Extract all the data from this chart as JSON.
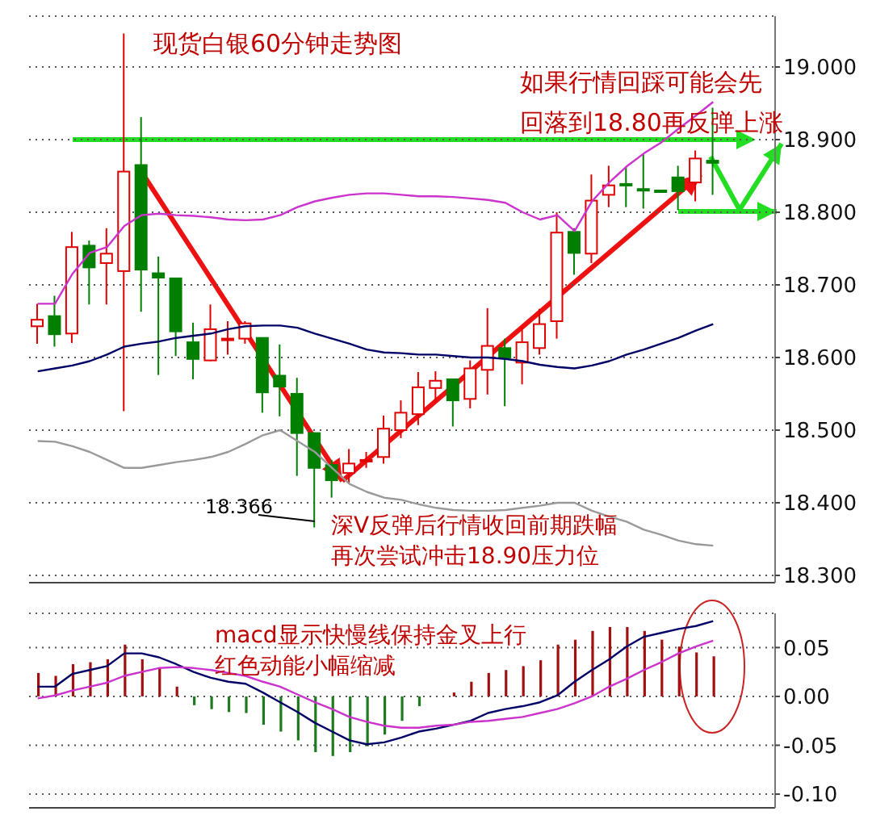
{
  "chart_data": [
    {
      "type": "candlestick",
      "title": "现货白银60分钟走势图",
      "categories": [
        null,
        null,
        null,
        null,
        null,
        null,
        null,
        null,
        null,
        null,
        null,
        null,
        null,
        null,
        null,
        null,
        null,
        null,
        null,
        null,
        null,
        null,
        null,
        null,
        null,
        null,
        null,
        null,
        null,
        null,
        null,
        null,
        null,
        null,
        null,
        null,
        null,
        null,
        null,
        null
      ],
      "ohlc": [
        [
          18.643,
          18.674,
          18.619,
          18.652
        ],
        [
          18.657,
          18.685,
          18.615,
          18.632
        ],
        [
          18.633,
          18.773,
          18.62,
          18.752
        ],
        [
          18.754,
          18.761,
          18.673,
          18.724
        ],
        [
          18.73,
          18.778,
          18.673,
          18.743
        ],
        [
          18.719,
          19.046,
          18.526,
          18.856
        ],
        [
          18.865,
          18.931,
          18.663,
          18.721
        ],
        [
          18.716,
          18.739,
          18.576,
          18.71
        ],
        [
          18.709,
          18.709,
          18.602,
          18.636
        ],
        [
          18.621,
          18.648,
          18.57,
          18.598
        ],
        [
          18.596,
          18.673,
          18.595,
          18.639
        ],
        [
          18.624,
          18.65,
          18.604,
          18.626
        ],
        [
          18.626,
          18.65,
          18.619,
          18.647
        ],
        [
          18.627,
          18.627,
          18.524,
          18.552
        ],
        [
          18.575,
          18.618,
          18.519,
          18.56
        ],
        [
          18.55,
          18.572,
          18.437,
          18.496
        ],
        [
          18.496,
          18.496,
          18.366,
          18.448
        ],
        [
          18.452,
          18.459,
          18.407,
          18.431
        ],
        [
          18.441,
          18.474,
          18.426,
          18.454
        ],
        [
          18.458,
          18.47,
          18.448,
          18.459
        ],
        [
          18.463,
          18.52,
          18.454,
          18.502
        ],
        [
          18.5,
          18.541,
          18.489,
          18.524
        ],
        [
          18.522,
          18.58,
          18.507,
          18.559
        ],
        [
          18.558,
          18.581,
          18.54,
          18.568
        ],
        [
          18.57,
          18.57,
          18.505,
          18.541
        ],
        [
          18.543,
          18.596,
          18.53,
          18.585
        ],
        [
          18.583,
          18.668,
          18.549,
          18.616
        ],
        [
          18.613,
          18.626,
          18.533,
          18.6
        ],
        [
          18.593,
          18.641,
          18.563,
          18.621
        ],
        [
          18.613,
          18.667,
          18.604,
          18.646
        ],
        [
          18.65,
          18.8,
          18.626,
          18.772
        ],
        [
          18.773,
          18.778,
          18.714,
          18.744
        ],
        [
          18.743,
          18.852,
          18.73,
          18.816
        ],
        [
          18.824,
          18.864,
          18.807,
          18.837
        ],
        [
          18.839,
          18.863,
          18.807,
          18.837
        ],
        [
          18.832,
          18.881,
          18.805,
          18.831
        ],
        [
          18.83,
          18.831,
          18.828,
          18.829
        ],
        [
          18.848,
          18.864,
          18.803,
          18.829
        ],
        [
          18.841,
          18.885,
          18.815,
          18.874
        ],
        [
          18.871,
          18.944,
          18.824,
          18.868
        ]
      ],
      "colors": [
        "#e00000",
        "#007f00",
        "#e00000",
        "#007f00",
        "#e00000",
        "#e00000",
        "#007f00",
        "#007f00",
        "#007f00",
        "#007f00",
        "#e00000",
        "#e00000",
        "#e00000",
        "#007f00",
        "#007f00",
        "#007f00",
        "#007f00",
        "#007f00",
        "#e00000",
        "#e00000",
        "#e00000",
        "#e00000",
        "#e00000",
        "#e00000",
        "#007f00",
        "#e00000",
        "#e00000",
        "#007f00",
        "#e00000",
        "#e00000",
        "#e00000",
        "#007f00",
        "#e00000",
        "#e00000",
        "#007f00",
        "#007f00",
        "#007f00",
        "#007f00",
        "#e00000",
        "#007f00"
      ],
      "series": [
        {
          "type": "line",
          "color": "#cc33cc",
          "values": [
            18.674,
            18.674,
            18.715,
            18.744,
            18.752,
            18.781,
            18.796,
            18.798,
            18.796,
            18.795,
            18.793,
            18.79,
            18.789,
            18.79,
            18.796,
            18.807,
            18.815,
            18.82,
            18.824,
            18.826,
            18.826,
            18.824,
            18.822,
            18.822,
            18.821,
            18.819,
            18.817,
            18.813,
            18.8,
            18.79,
            18.796,
            18.774,
            18.815,
            18.841,
            18.863,
            18.881,
            18.896,
            18.915,
            18.933,
            18.952
          ]
        },
        {
          "type": "line",
          "color": "#000066",
          "values": [
            18.581,
            18.585,
            18.589,
            18.595,
            18.604,
            18.615,
            18.619,
            18.622,
            18.627,
            18.63,
            18.633,
            18.639,
            18.643,
            18.644,
            18.644,
            18.641,
            18.633,
            18.626,
            18.619,
            18.611,
            18.607,
            18.606,
            18.604,
            18.604,
            18.602,
            18.6,
            18.6,
            18.598,
            18.595,
            18.59,
            18.587,
            18.585,
            18.589,
            18.595,
            18.604,
            18.611,
            18.619,
            18.627,
            18.637,
            18.646
          ]
        },
        {
          "type": "line",
          "color": "#999999",
          "values": [
            18.485,
            18.484,
            18.478,
            18.47,
            18.459,
            18.448,
            18.448,
            18.452,
            18.456,
            18.459,
            18.463,
            18.47,
            18.481,
            18.493,
            18.5,
            18.485,
            18.47,
            18.448,
            18.426,
            18.415,
            18.407,
            18.404,
            18.398,
            18.393,
            18.39,
            18.389,
            18.389,
            18.39,
            18.393,
            18.396,
            18.4,
            18.4,
            18.389,
            18.381,
            18.374,
            18.363,
            18.356,
            18.348,
            18.343,
            18.341
          ]
        }
      ],
      "ylim": [
        18.29,
        19.07
      ],
      "yticks": [
        {
          "value": 18.3,
          "label": "18.300"
        },
        {
          "value": 18.4,
          "label": "18.400"
        },
        {
          "value": 18.5,
          "label": "18.500"
        },
        {
          "value": 18.6,
          "label": "18.600"
        },
        {
          "value": 18.7,
          "label": "18.700"
        },
        {
          "value": 18.8,
          "label": "18.800"
        },
        {
          "value": 18.9,
          "label": "18.900"
        },
        {
          "value": 19,
          "label": "19.000"
        }
      ],
      "grid": "y",
      "tick_labels": "y",
      "ref_lines": [
        {
          "axis": "y",
          "value": 18.9,
          "color": "#22dd22"
        }
      ],
      "annotations": [
        "如果行情回踩可能会先回落到18.80再反弹上涨",
        "深V反弹后行情收回前期跌幅再次尝试冲击18.90压力位",
        "18.366"
      ]
    },
    {
      "type": "bar",
      "categories": [
        null,
        null,
        null,
        null,
        null,
        null,
        null,
        null,
        null,
        null,
        null,
        null,
        null,
        null,
        null,
        null,
        null,
        null,
        null,
        null,
        null,
        null,
        null,
        null,
        null,
        null,
        null,
        null,
        null,
        null,
        null,
        null,
        null,
        null,
        null,
        null,
        null,
        null,
        null,
        null
      ],
      "series": [
        {
          "type": "bar",
          "colors": [
            "#a01010",
            "#a01010",
            "#a01010",
            "#a01010",
            "#a01010",
            "#a01010",
            "#a01010",
            "#a01010",
            "#a01010",
            "#1e7a1e",
            "#1e7a1e",
            "#1e7a1e",
            "#1e7a1e",
            "#1e7a1e",
            "#1e7a1e",
            "#1e7a1e",
            "#1e7a1e",
            "#1e7a1e",
            "#1e7a1e",
            "#1e7a1e",
            "#1e7a1e",
            "#1e7a1e",
            "#1e7a1e",
            "#1e7a1e",
            "#a01010",
            "#a01010",
            "#a01010",
            "#a01010",
            "#a01010",
            "#a01010",
            "#a01010",
            "#a01010",
            "#a01010",
            "#a01010",
            "#a01010",
            "#a01010",
            "#a01010",
            "#a01010",
            "#a01010",
            "#a01010"
          ],
          "values": [
            0.024,
            0.021,
            0.033,
            0.035,
            0.038,
            0.053,
            0.038,
            0.029,
            0.01,
            -0.009,
            -0.013,
            -0.016,
            -0.017,
            -0.029,
            -0.036,
            -0.045,
            -0.057,
            -0.061,
            -0.057,
            -0.051,
            -0.039,
            -0.025,
            -0.01,
            0,
            0.004,
            0.015,
            0.024,
            0.027,
            0.031,
            0.037,
            0.053,
            0.058,
            0.067,
            0.071,
            0.071,
            0.067,
            0.058,
            0.051,
            0.045,
            0.041
          ]
        },
        {
          "type": "line",
          "color": "#000066",
          "values": [
            0.01,
            0.01,
            0.023,
            0.027,
            0.031,
            0.044,
            0.044,
            0.04,
            0.033,
            0.025,
            0.019,
            0.015,
            0.013,
            0.004,
            -0.006,
            -0.016,
            -0.027,
            -0.036,
            -0.045,
            -0.049,
            -0.047,
            -0.042,
            -0.036,
            -0.033,
            -0.029,
            -0.025,
            -0.017,
            -0.013,
            -0.01,
            -0.006,
            0.001,
            0.015,
            0.027,
            0.038,
            0.051,
            0.061,
            0.065,
            0.069,
            0.072,
            0.077
          ]
        },
        {
          "type": "line",
          "color": "#cc33cc",
          "values": [
            -0.002,
            0.001,
            0.006,
            0.01,
            0.014,
            0.021,
            0.025,
            0.029,
            0.03,
            0.029,
            0.027,
            0.024,
            0.021,
            0.015,
            0.01,
            0.002,
            -0.006,
            -0.013,
            -0.021,
            -0.026,
            -0.03,
            -0.032,
            -0.032,
            -0.03,
            -0.029,
            -0.026,
            -0.025,
            -0.023,
            -0.021,
            -0.017,
            -0.013,
            -0.007,
            0.0,
            0.01,
            0.018,
            0.027,
            0.035,
            0.044,
            0.051,
            0.057
          ]
        }
      ],
      "ylim": [
        -0.114,
        0.085
      ],
      "yticks": [
        0.05,
        {
          "value": 0,
          "label": "0.00"
        },
        -0.05,
        {
          "value": -0.1,
          "label": "-0.10"
        }
      ],
      "grid": "y",
      "tick_labels": "y",
      "annotations": [
        "macd显示快慢线保持金叉上行红色动能小幅缩减"
      ]
    }
  ]
}
